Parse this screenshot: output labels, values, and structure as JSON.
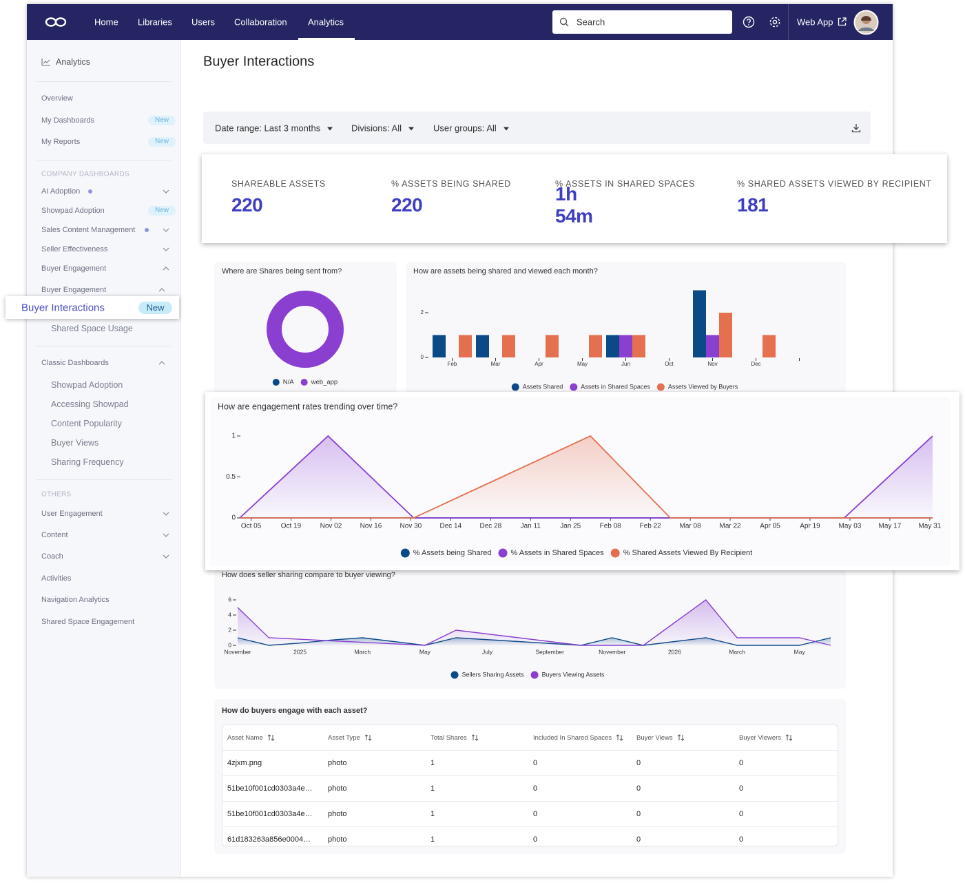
{
  "nav": {
    "items": [
      "Home",
      "Libraries",
      "Users",
      "Collaboration",
      "Analytics"
    ],
    "search": "Search",
    "app": "Web App"
  },
  "sidebar": {
    "heading": "Analytics",
    "items": [
      {
        "label": "Overview"
      },
      {
        "label": "My Dashboards",
        "badge": "New"
      },
      {
        "label": "My Reports",
        "badge": "New"
      }
    ],
    "company": {
      "title": "COMPANY DASHBOARDS",
      "items": [
        {
          "label": "AI Adoption"
        },
        {
          "label": "Showpad Adoption",
          "badge": "New"
        },
        {
          "label": "Sales Content Management"
        },
        {
          "label": "Seller Effectiveness"
        },
        {
          "label": "Buyer Engagement"
        },
        {
          "label": "Buyer Engagement",
          "children": [
            {
              "label": "Buyer Interactions",
              "badge": "New"
            },
            {
              "label": "Shared Space Usage"
            }
          ]
        }
      ]
    },
    "classic": {
      "title": "Classic Dashboards",
      "items": [
        "Showpad Adoption",
        "Accessing Showpad",
        "Content Popularity",
        "Buyer Views",
        "Sharing Frequency"
      ]
    },
    "others": {
      "title": "OTHERS",
      "items": [
        "User Engagement",
        "Content",
        "Coach",
        "Activities",
        "Navigation Analytics",
        "Shared Space Engagement"
      ]
    }
  },
  "page": {
    "title": "Buyer Interactions",
    "filters": [
      "Date range: Last 3 months",
      "Divisions: All",
      "User groups: All"
    ]
  },
  "kpis": [
    {
      "label": "SHAREABLE ASSETS",
      "value": 220
    },
    {
      "label": "% ASSETS BEING SHARED",
      "value": 220
    },
    {
      "label": "% ASSETS IN SHARED SPACES",
      "value": "1h 54m"
    },
    {
      "label": "% SHARED ASSETS VIEWED BY RECIPIENT",
      "value": 181
    }
  ],
  "chart_data": [
    {
      "type": "donut",
      "title": "Where are Shares being sent from?",
      "categories": [
        "N/A",
        "web_app"
      ],
      "values": [
        0,
        1
      ],
      "colors": [
        "#0b4a87",
        "#8a3fd1"
      ]
    },
    {
      "type": "bar",
      "title": "How are assets being shared and viewed each month?",
      "categories": [
        "Feb",
        "Mar",
        "Apr",
        "May",
        "Jun",
        "Oct",
        "Nov",
        "Dec",
        null
      ],
      "series": [
        {
          "name": "Assets Shared",
          "color": "#0b4a87",
          "values": [
            1,
            1,
            0,
            0,
            1,
            0,
            3,
            0,
            0
          ]
        },
        {
          "name": "Assets in Shared Spaces",
          "color": "#8a3fd1",
          "values": [
            0,
            0,
            0,
            0,
            1,
            0,
            1,
            0,
            0
          ]
        },
        {
          "name": "Assets Viewed by Buyers",
          "color": "#e4704f",
          "values": [
            1,
            1,
            1,
            1,
            1,
            0,
            2,
            1,
            0
          ]
        }
      ],
      "ylim": [
        0,
        3
      ],
      "yticks": [
        0,
        2
      ]
    },
    {
      "type": "area",
      "title": "How are engagement rates trending over time?",
      "x": [
        "Oct 01",
        "Nov 01",
        "Dec 01",
        "Jan 01",
        "Feb 01",
        "Mar 01",
        "Apr 01",
        "May 01",
        "Jun 01"
      ],
      "xlim": [
        "Oct 01",
        "Jun 01"
      ],
      "xticks": [
        "Oct 05",
        "Oct 19",
        "Nov 02",
        "Nov 16",
        "Nov 30",
        "Dec 14",
        "Dec 28",
        "Jan 11",
        "Jan 25",
        "Feb 08",
        "Feb 22",
        "Mar 08",
        "Mar 22",
        "Apr 05",
        "Apr 19",
        "May 03",
        "May 17",
        "May 31"
      ],
      "series": [
        {
          "name": "% Assets being Shared",
          "color": "#0b4a87",
          "values": [
            0,
            0,
            0,
            0,
            0,
            0,
            0,
            0,
            0
          ]
        },
        {
          "name": "% Assets in Shared Spaces",
          "color": "#8a3fd1",
          "values": [
            0,
            1,
            0,
            0,
            0,
            0,
            0,
            0,
            1
          ]
        },
        {
          "name": "% Shared Assets Viewed By Recipient",
          "color": "#e4704f",
          "values": [
            0,
            0,
            0,
            0.5,
            1,
            0,
            0,
            0,
            0
          ]
        }
      ],
      "ylim": [
        0,
        1
      ],
      "yticks": [
        0,
        0.5,
        1
      ]
    },
    {
      "type": "area",
      "title": "How does seller sharing compare to buyer viewing?",
      "categories": [
        "November",
        null,
        "2025",
        null,
        "March",
        null,
        "May",
        null,
        "July",
        null,
        "September",
        null,
        "November",
        null,
        "2026",
        null,
        "March",
        null,
        "May",
        null
      ],
      "series": [
        {
          "name": "Sellers Sharing Assets",
          "color": "#0b4a87",
          "values": [
            1,
            0,
            0.3,
            0.7,
            1,
            0.5,
            0,
            1,
            0.75,
            0.5,
            0.25,
            0,
            1,
            0,
            0.5,
            1,
            0,
            0,
            0,
            1
          ]
        },
        {
          "name": "Buyers Viewing Assets",
          "color": "#8a3fd1",
          "values": [
            5,
            1,
            0.8,
            0.6,
            0.4,
            0.2,
            0,
            2,
            1.5,
            1,
            0.5,
            0,
            0,
            0,
            3,
            6,
            1,
            1,
            1,
            0
          ]
        }
      ],
      "ylim": [
        0,
        6
      ],
      "yticks": [
        0,
        2,
        4,
        6
      ]
    }
  ],
  "table": {
    "title": "How do buyers engage with each asset?",
    "columns": [
      "Asset Name",
      "Asset Type",
      "Total Shares",
      "Included In Shared Spaces",
      "Buyer Views",
      "Buyer Viewers"
    ],
    "rows": [
      [
        "4zjxm.png",
        "photo",
        1,
        0,
        0,
        0
      ],
      [
        "51be10f001cd0303a4e…",
        "photo",
        1,
        0,
        0,
        0
      ],
      [
        "51be10f001cd0303a4e…",
        "photo",
        1,
        0,
        0,
        0
      ],
      [
        "61d183263a856e0004…",
        "photo",
        1,
        0,
        0,
        0
      ]
    ]
  }
}
